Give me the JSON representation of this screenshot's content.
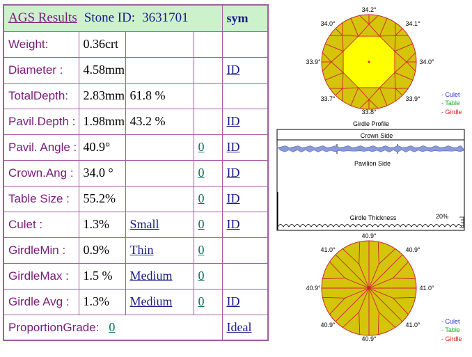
{
  "header": {
    "results_link": "AGS Results",
    "stone_id_label": "Stone ID:",
    "stone_id": "3631701",
    "sym": "sym"
  },
  "rows": [
    {
      "label": "Weight:",
      "value": "0.36crt",
      "extra": "",
      "link": "",
      "sym": ""
    },
    {
      "label": "Diameter :",
      "value": "4.58mm",
      "extra": "",
      "link": "",
      "sym": "ID"
    },
    {
      "label": "TotalDepth:",
      "value": "2.83mm",
      "extra": "61.8 %",
      "link": "",
      "sym": ""
    },
    {
      "label": "Pavil.Depth :",
      "value": "1.98mm",
      "extra": "43.2 %",
      "link": "",
      "sym": "ID"
    },
    {
      "label": "Pavil. Angle :",
      "value": "40.9°",
      "extra": "",
      "link": "0",
      "sym": "ID"
    },
    {
      "label": "Crown.Ang :",
      "value": "34.0 °",
      "extra": "",
      "link": "0",
      "sym": "ID"
    },
    {
      "label": "Table Size :",
      "value": "55.2%",
      "extra": "",
      "link": "0",
      "sym": "ID"
    },
    {
      "label": "Culet :",
      "value": "1.3%",
      "extra": "Small",
      "link": "0",
      "sym": "ID"
    },
    {
      "label": "GirdleMin :",
      "value": "0.9%",
      "extra": "Thin",
      "link": "0",
      "sym": ""
    },
    {
      "label": "GirdleMax :",
      "value": "1.5 %",
      "extra": "Medium",
      "link": "0",
      "sym": ""
    },
    {
      "label": "Girdle Avg :",
      "value": "1.3%",
      "extra": "Medium",
      "link": "0",
      "sym": "ID"
    }
  ],
  "footer": {
    "label": "ProportionGrade:",
    "link": "0",
    "grade": "Ideal"
  },
  "crown_diagram": {
    "angles": {
      "top": "34.2°",
      "top_left": "34.0°",
      "top_right": "34.1°",
      "left": "33.9°",
      "right": "34.0°",
      "bottom_left": "33.7°",
      "bottom_right": "33.9°",
      "bottom": "33.8°"
    },
    "legend": [
      "- Culet",
      "- Table",
      "- Girdle"
    ],
    "legend_colors": [
      "#2233cc",
      "#22aa22",
      "#dd2222"
    ]
  },
  "profile": {
    "title": "Girdle Profile",
    "crown_side": "Crown Side",
    "pavilion_side": "Pavilion Side",
    "girdle_thickness": "Girdle Thickness",
    "percent": "20%"
  },
  "pavilion_diagram": {
    "angles": {
      "top": "40.9°",
      "top_left": "41.0°",
      "top_right": "40.9°",
      "left": "40.9°",
      "right": "41.0°",
      "bottom_left": "40.9°",
      "bottom_right": "41.0°",
      "bottom": "40.9°"
    },
    "legend": [
      "- Culet",
      "- Table",
      "- Girdle"
    ],
    "legend_colors": [
      "#2233cc",
      "#22aa22",
      "#dd2222"
    ]
  },
  "colors": {
    "border": "#a55aa5",
    "header_bg": "#ccf2cc",
    "label": "#7a1a7a",
    "link": "#1a1a8c",
    "diagram_fill": "#d4c40a",
    "table_fill": "#ffff00",
    "facet_line": "#cc2233"
  }
}
